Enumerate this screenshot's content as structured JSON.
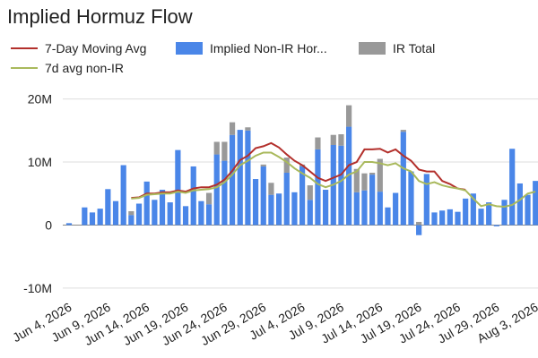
{
  "chart_data": {
    "type": "bar",
    "title": "Implied Hormuz Flow",
    "stacked": true,
    "grid": true,
    "legend": "top",
    "categories": [
      "Jun 4, 2026",
      null,
      null,
      null,
      null,
      "Jun 9, 2026",
      null,
      null,
      null,
      null,
      "Jun 14, 2026",
      null,
      null,
      null,
      null,
      "Jun 19, 2026",
      null,
      null,
      null,
      null,
      "Jun 24, 2026",
      null,
      null,
      null,
      null,
      "Jun 29, 2026",
      null,
      null,
      null,
      null,
      "Jul 4, 2026",
      null,
      null,
      null,
      null,
      "Jul 9, 2026",
      null,
      null,
      null,
      null,
      "Jul 14, 2026",
      null,
      null,
      null,
      null,
      "Jul 19, 2026",
      null,
      null,
      null,
      null,
      "Jul 24, 2026",
      null,
      null,
      null,
      null,
      "Jul 29, 2026",
      null,
      null,
      null,
      null,
      "Aug 3, 2026"
    ],
    "ylim": [
      -12000000.0,
      21500000.0
    ],
    "yticks": [
      {
        "value": -10000000.0,
        "label": "-10M"
      },
      {
        "value": 0,
        "label": "0"
      },
      {
        "value": 10000000.0,
        "label": "10M"
      },
      {
        "value": 20000000.0,
        "label": "20M"
      }
    ],
    "series": [
      {
        "name": "7-Day Moving Avg",
        "type": "line",
        "color": "#b3302c",
        "values": [
          null,
          null,
          null,
          null,
          null,
          null,
          null,
          null,
          4300000.0,
          4400000.0,
          5000000.0,
          5000000.0,
          5200000.0,
          5200000.0,
          5500000.0,
          5300000.0,
          5800000.0,
          6000000.0,
          6000000.0,
          6400000.0,
          7200000.0,
          8600000.0,
          10300000.0,
          11000000.0,
          12200000.0,
          12500000.0,
          13000000.0,
          12300000.0,
          11200000.0,
          10200000.0,
          9500000.0,
          8500000.0,
          7500000.0,
          7000000.0,
          7500000.0,
          8000000.0,
          9500000.0,
          10000000.0,
          12000000.0,
          12000000.0,
          12100000.0,
          11500000.0,
          12000000.0,
          11000000.0,
          10200000.0,
          8800000.0,
          8500000.0,
          8500000.0,
          7000000.0,
          6500000.0,
          5800000.0,
          5600000.0,
          null,
          null,
          null,
          null,
          null,
          null,
          null,
          null,
          null
        ]
      },
      {
        "name": "Implied Non-IR Hor...",
        "type": "bar",
        "color": "#4a86e8",
        "values": [
          300000.0,
          0,
          2800000.0,
          2000000.0,
          2600000.0,
          5700000.0,
          3800000.0,
          9500000.0,
          1600000.0,
          3400000.0,
          6900000.0,
          4000000.0,
          5600000.0,
          3600000.0,
          11900000.0,
          3000000.0,
          9300000.0,
          3800000.0,
          3300000.0,
          11200000.0,
          10200000.0,
          14300000.0,
          15100000.0,
          15000000.0,
          7300000.0,
          9300000.0,
          4800000.0,
          5000000.0,
          8300000.0,
          5200000.0,
          9300000.0,
          4000000.0,
          12000000.0,
          5600000.0,
          12700000.0,
          12600000.0,
          15600000.0,
          5200000.0,
          5500000.0,
          8000000.0,
          5300000.0,
          2800000.0,
          5100000.0,
          14800000.0,
          8500000.0,
          -1600000.0,
          8100000.0,
          2000000.0,
          2300000.0,
          2500000.0,
          2100000.0,
          4200000.0,
          5000000.0,
          2600000.0,
          3600000.0,
          -200000.0,
          4000000.0,
          12100000.0,
          6600000.0,
          4800000.0,
          7000000.0
        ]
      },
      {
        "name": "IR Total",
        "type": "bar",
        "color": "#999999",
        "values": [
          0,
          0,
          0,
          0,
          0,
          0,
          0,
          0,
          600000.0,
          0,
          0,
          0,
          0,
          0,
          0,
          0,
          0,
          0,
          1800000.0,
          2000000.0,
          3000000.0,
          2000000.0,
          0,
          500000.0,
          0,
          300000.0,
          1900000.0,
          0,
          2400000.0,
          0,
          300000.0,
          2300000.0,
          1900000.0,
          0,
          1600000.0,
          1800000.0,
          3400000.0,
          3700000.0,
          2700000.0,
          300000.0,
          5200000.0,
          0,
          0,
          300000.0,
          0,
          500000.0,
          0,
          0,
          0,
          0,
          0,
          0,
          0,
          0,
          0,
          0,
          0,
          0,
          0,
          0,
          0
        ]
      },
      {
        "name": "7d avg non-IR",
        "type": "line",
        "color": "#a9b95c",
        "values": [
          null,
          null,
          null,
          null,
          null,
          null,
          null,
          null,
          4200000.0,
          4300000.0,
          4800000.0,
          4900000.0,
          5000000.0,
          5000000.0,
          5300000.0,
          5100000.0,
          5500000.0,
          5600000.0,
          5700000.0,
          6000000.0,
          6800000.0,
          8000000.0,
          9500000.0,
          10200000.0,
          11000000.0,
          11500000.0,
          11500000.0,
          10800000.0,
          10000000.0,
          9000000.0,
          8200000.0,
          7500000.0,
          6500000.0,
          6000000.0,
          6400000.0,
          7000000.0,
          8000000.0,
          8500000.0,
          10000000.0,
          10000000.0,
          9800000.0,
          9500000.0,
          9800000.0,
          9000000.0,
          8500000.0,
          7000000.0,
          6500000.0,
          6800000.0,
          6300000.0,
          6000000.0,
          5800000.0,
          5500000.0,
          4200000.0,
          3000000.0,
          3300000.0,
          3000000.0,
          2900000.0,
          3200000.0,
          4000000.0,
          5000000.0,
          5300000.0
        ]
      }
    ]
  }
}
